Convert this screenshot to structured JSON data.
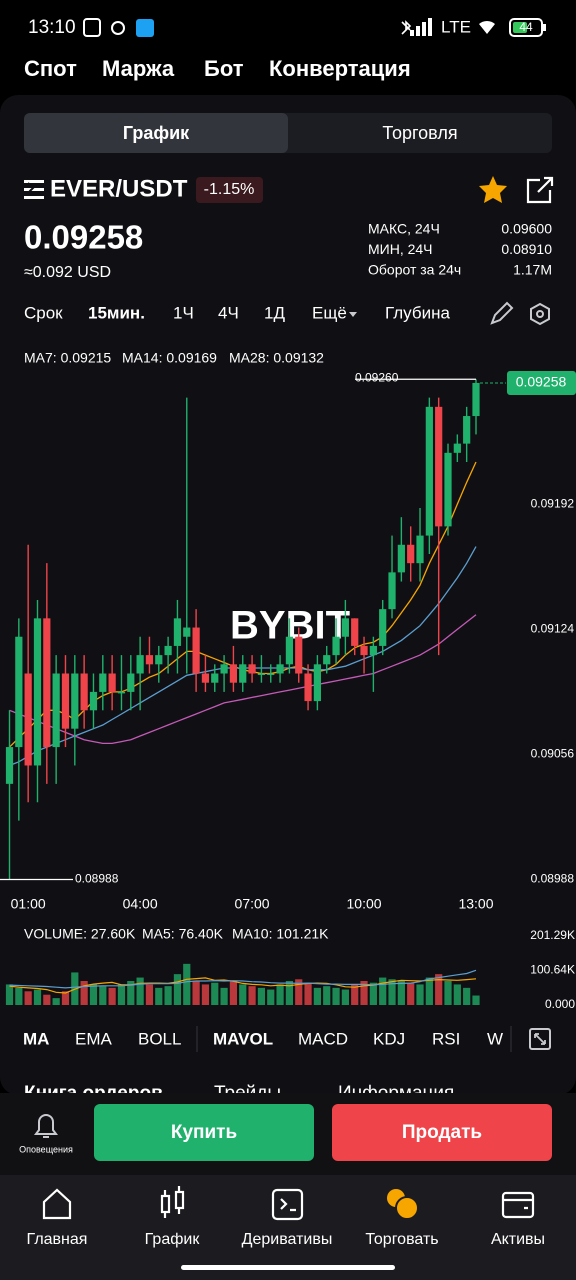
{
  "status": {
    "time": "13:10",
    "network": "LTE",
    "battery": "44"
  },
  "top_tabs": [
    "Спот",
    "Маржа",
    "Бот",
    "Конвертация"
  ],
  "view_tabs": [
    "График",
    "Торговля"
  ],
  "pair": "EVER/USDT",
  "change": "-1.15%",
  "price": "0.09258",
  "price_usd": "≈0.092 USD",
  "stats": [
    {
      "label": "МАКС, 24Ч",
      "value": "0.09600"
    },
    {
      "label": "МИН, 24Ч",
      "value": "0.08910"
    },
    {
      "label": "Оборот за 24ч",
      "value": "1.17M"
    }
  ],
  "timeframes": [
    "Срок",
    "15мин.",
    "1Ч",
    "4Ч",
    "1Д",
    "Ещё",
    "Глубина"
  ],
  "chart_data": {
    "type": "candlestick",
    "watermark": "BYBIT",
    "max_label": "0.09260",
    "min_label": "0.08988",
    "up_color": "#20b26c",
    "down_color": "#ef454a",
    "ylim": [
      0.08985,
      0.09277
    ],
    "yticks": [
      0.09192,
      0.09124,
      0.09056,
      0.08988
    ],
    "categories": [
      null,
      null,
      "01:00",
      null,
      null,
      null,
      null,
      null,
      null,
      null,
      null,
      null,
      null,
      null,
      "04:00",
      null,
      null,
      null,
      null,
      null,
      null,
      null,
      null,
      null,
      null,
      null,
      "07:00",
      null,
      null,
      null,
      null,
      null,
      null,
      null,
      null,
      null,
      null,
      null,
      "10:00",
      null,
      null,
      null,
      null,
      null,
      null,
      null,
      null,
      null,
      null,
      null,
      "13:00"
    ],
    "candles": [
      [
        0.0904,
        0.0908,
        0.08988,
        0.0906
      ],
      [
        0.0906,
        0.0913,
        0.0902,
        0.0912
      ],
      [
        0.091,
        0.0917,
        0.0903,
        0.0905
      ],
      [
        0.0905,
        0.0914,
        0.0903,
        0.0913
      ],
      [
        0.0913,
        0.0916,
        0.0904,
        0.0906
      ],
      [
        0.0906,
        0.0911,
        0.0904,
        0.091
      ],
      [
        0.091,
        0.0911,
        0.0906,
        0.0907
      ],
      [
        0.0907,
        0.0911,
        0.0905,
        0.091
      ],
      [
        0.091,
        0.0911,
        0.0907,
        0.0908
      ],
      [
        0.0908,
        0.091,
        0.0907,
        0.0909
      ],
      [
        0.0909,
        0.0911,
        0.0908,
        0.091
      ],
      [
        0.091,
        0.0911,
        0.0908,
        0.0909
      ],
      [
        0.0909,
        0.0911,
        0.0908,
        0.0909
      ],
      [
        0.0909,
        0.0911,
        0.0908,
        0.091
      ],
      [
        0.091,
        0.0912,
        0.0908,
        0.0911
      ],
      [
        0.0911,
        0.0912,
        0.091,
        0.09105
      ],
      [
        0.09105,
        0.09115,
        0.09095,
        0.0911
      ],
      [
        0.0911,
        0.0912,
        0.091,
        0.09115
      ],
      [
        0.09115,
        0.0914,
        0.091,
        0.0913
      ],
      [
        0.0912,
        0.0925,
        0.091,
        0.09125
      ],
      [
        0.09125,
        0.09135,
        0.0909,
        0.091
      ],
      [
        0.091,
        0.0911,
        0.0909,
        0.09095
      ],
      [
        0.09095,
        0.09105,
        0.0909,
        0.091
      ],
      [
        0.091,
        0.0911,
        0.0909,
        0.09105
      ],
      [
        0.09105,
        0.09115,
        0.0909,
        0.09095
      ],
      [
        0.09095,
        0.0911,
        0.0909,
        0.09105
      ],
      [
        0.09105,
        0.0911,
        0.09095,
        0.091
      ],
      [
        0.091,
        0.0911,
        0.09095,
        0.091
      ],
      [
        0.091,
        0.09105,
        0.09095,
        0.091
      ],
      [
        0.091,
        0.0911,
        0.09095,
        0.09105
      ],
      [
        0.09105,
        0.0913,
        0.091,
        0.0912
      ],
      [
        0.0912,
        0.09125,
        0.09095,
        0.091
      ],
      [
        0.091,
        0.09105,
        0.0908,
        0.09085
      ],
      [
        0.09085,
        0.0911,
        0.0908,
        0.09105
      ],
      [
        0.09105,
        0.09115,
        0.091,
        0.0911
      ],
      [
        0.0911,
        0.0913,
        0.09105,
        0.0912
      ],
      [
        0.0912,
        0.0914,
        0.0911,
        0.0913
      ],
      [
        0.0913,
        0.0913,
        0.0911,
        0.09115
      ],
      [
        0.09115,
        0.0912,
        0.091,
        0.0911
      ],
      [
        0.0911,
        0.0912,
        0.0909,
        0.09115
      ],
      [
        0.09115,
        0.0914,
        0.0911,
        0.09135
      ],
      [
        0.09135,
        0.09175,
        0.0913,
        0.09155
      ],
      [
        0.09155,
        0.09185,
        0.0915,
        0.0917
      ],
      [
        0.0917,
        0.0918,
        0.0915,
        0.0916
      ],
      [
        0.0916,
        0.0919,
        0.0915,
        0.09175
      ],
      [
        0.09175,
        0.0925,
        0.09165,
        0.09245
      ],
      [
        0.09245,
        0.0925,
        0.0911,
        0.0918
      ],
      [
        0.0918,
        0.09225,
        0.09175,
        0.0922
      ],
      [
        0.0922,
        0.0923,
        0.09215,
        0.09225
      ],
      [
        0.09225,
        0.09245,
        0.09215,
        0.0924
      ],
      [
        0.0924,
        0.0926,
        0.0923,
        0.09258
      ]
    ],
    "series": [
      {
        "name": "MA7: 0.09215",
        "color": "#f7a600",
        "values": [
          0.0906,
          0.09065,
          0.0907,
          0.09075,
          0.0908,
          0.0908,
          0.09078,
          0.09075,
          0.0908,
          0.09085,
          0.09088,
          0.0909,
          0.0909,
          0.09092,
          0.09095,
          0.09098,
          0.091,
          0.09104,
          0.09108,
          0.09112,
          0.09112,
          0.0911,
          0.09108,
          0.09106,
          0.09104,
          0.09102,
          0.09101,
          0.091,
          0.091,
          0.09101,
          0.09103,
          0.09104,
          0.09102,
          0.09101,
          0.09102,
          0.09105,
          0.0911,
          0.09114,
          0.09116,
          0.09117,
          0.0912,
          0.09126,
          0.09133,
          0.0914,
          0.09148,
          0.0916,
          0.0917,
          0.0918,
          0.09192,
          0.09204,
          0.09215
        ]
      },
      {
        "name": "MA14: 0.09169",
        "color": "#5c9ecf",
        "values": [
          0.0905,
          0.09052,
          0.09055,
          0.09058,
          0.0906,
          0.09062,
          0.09064,
          0.09066,
          0.09068,
          0.0907,
          0.09072,
          0.09075,
          0.09078,
          0.09081,
          0.09084,
          0.09087,
          0.0909,
          0.09093,
          0.09096,
          0.09099,
          0.091,
          0.09101,
          0.09102,
          0.09103,
          0.09103,
          0.09103,
          0.09103,
          0.09103,
          0.09103,
          0.09103,
          0.09103,
          0.09103,
          0.09102,
          0.09102,
          0.09102,
          0.09103,
          0.09104,
          0.09106,
          0.09108,
          0.0911,
          0.09112,
          0.09115,
          0.09118,
          0.09122,
          0.09126,
          0.09132,
          0.09138,
          0.09145,
          0.09152,
          0.0916,
          0.09169
        ]
      },
      {
        "name": "MA28: 0.09132",
        "color": "#c55ab8",
        "values": [
          0.0908,
          0.09078,
          0.09076,
          0.09074,
          0.09072,
          0.0907,
          0.09068,
          0.09066,
          0.09064,
          0.09063,
          0.09062,
          0.09062,
          0.09063,
          0.09064,
          0.09066,
          0.09068,
          0.0907,
          0.09072,
          0.09074,
          0.09076,
          0.09078,
          0.0908,
          0.09082,
          0.09084,
          0.09085,
          0.09086,
          0.09087,
          0.09088,
          0.09089,
          0.0909,
          0.09091,
          0.09092,
          0.09093,
          0.09094,
          0.09095,
          0.09096,
          0.09097,
          0.09098,
          0.09099,
          0.091,
          0.09102,
          0.09104,
          0.09106,
          0.09108,
          0.0911,
          0.09113,
          0.09116,
          0.0912,
          0.09124,
          0.09128,
          0.09132
        ]
      }
    ],
    "volume": {
      "label": "VOLUME: 27.60K",
      "ylim": [
        0,
        224600
      ],
      "yticks": [
        {
          "value": 201290,
          "label": "201.29K"
        },
        {
          "value": 100640,
          "label": "100.64K"
        },
        {
          "value": 0,
          "label": "0.000"
        }
      ],
      "values": [
        60000,
        50000,
        40000,
        45000,
        30000,
        20000,
        40000,
        95000,
        70000,
        60000,
        55000,
        50000,
        60000,
        70000,
        80000,
        60000,
        50000,
        55000,
        90000,
        120000,
        70000,
        60000,
        65000,
        50000,
        70000,
        60000,
        55000,
        50000,
        45000,
        60000,
        70000,
        75000,
        65000,
        50000,
        55000,
        50000,
        45000,
        60000,
        70000,
        65000,
        80000,
        75000,
        70000,
        65000,
        60000,
        80000,
        90000,
        70000,
        60000,
        50000,
        27600
      ],
      "series": [
        {
          "name": "MA5: 76.40K",
          "color": "#f7a600",
          "values": [
            55000,
            52000,
            50000,
            48000,
            45000,
            37000,
            35000,
            46000,
            56000,
            61000,
            64000,
            66000,
            59000,
            59000,
            63000,
            64000,
            64000,
            63000,
            67000,
            75000,
            77000,
            79000,
            72000,
            73000,
            69000,
            63000,
            60000,
            59000,
            56000,
            58000,
            56000,
            60000,
            63000,
            64000,
            63000,
            59000,
            53000,
            52000,
            56000,
            58000,
            64000,
            68000,
            72000,
            71000,
            70000,
            72000,
            74000,
            73000,
            72000,
            74000,
            76400
          ]
        },
        {
          "name": "MA10: 101.21K",
          "color": "#5c9ecf",
          "values": [
            58000,
            57000,
            56000,
            55000,
            54000,
            52000,
            50000,
            52000,
            54000,
            55000,
            56000,
            56000,
            56000,
            58000,
            61000,
            62000,
            62000,
            62000,
            63000,
            68000,
            70000,
            70000,
            71000,
            70000,
            71000,
            70000,
            68000,
            67000,
            65000,
            64000,
            64000,
            63000,
            64000,
            62000,
            61000,
            61000,
            60000,
            60000,
            60000,
            59000,
            60000,
            62000,
            63000,
            64000,
            68000,
            76000,
            80000,
            84000,
            88000,
            92000,
            101210
          ]
        }
      ]
    }
  },
  "indicator_tabs": [
    "MA",
    "EMA",
    "BOLL",
    "MAVOL",
    "MACD",
    "KDJ",
    "RSI",
    "W"
  ],
  "book_tabs": [
    "Книга ордеров",
    "Трейды",
    "Информация"
  ],
  "alerts": "Оповещения",
  "buy": "Купить",
  "sell": "Продать",
  "nav": [
    "Главная",
    "График",
    "Деривативы",
    "Торговать",
    "Активы"
  ]
}
